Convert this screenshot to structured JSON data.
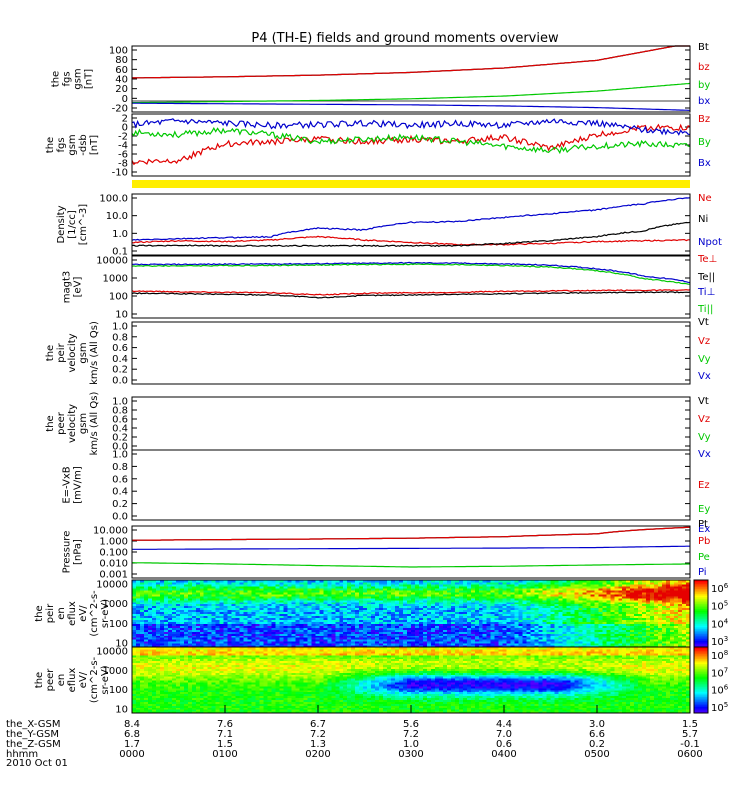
{
  "title": "P4 (TH-E) fields and ground moments overview",
  "date_label": "2010 Oct 01",
  "ephemeris": {
    "rows": [
      {
        "label": "the_X-GSM",
        "values": [
          "8.4",
          "7.6",
          "6.7",
          "5.6",
          "4.4",
          "3.0",
          "1.5"
        ]
      },
      {
        "label": "the_Y-GSM",
        "values": [
          "6.8",
          "7.1",
          "7.2",
          "7.2",
          "7.0",
          "6.6",
          "5.7"
        ]
      },
      {
        "label": "the_Z-GSM",
        "values": [
          "1.7",
          "1.5",
          "1.3",
          "1.0",
          "0.6",
          "0.2",
          "-0.1"
        ]
      },
      {
        "label": "hhmm",
        "values": [
          "0000",
          "0100",
          "0200",
          "0300",
          "0400",
          "0500",
          "0600"
        ]
      }
    ]
  },
  "chart_data": [
    {
      "type": "line",
      "ylabel": [
        "the",
        "fgs",
        "gsm",
        "[nT]"
      ],
      "yticks": [
        "100",
        "80",
        "60",
        "40",
        "20",
        "0",
        "-20"
      ],
      "ylim": [
        -20,
        100
      ],
      "x_hours": [
        0,
        1,
        2,
        3,
        4,
        5,
        6
      ],
      "series": [
        {
          "name": "Bt",
          "color": "#000000",
          "values": [
            42,
            44,
            47,
            52,
            60,
            74,
            105
          ]
        },
        {
          "name": "bz",
          "color": "#e00000",
          "values": [
            42,
            44,
            47,
            52,
            60,
            74,
            105
          ]
        },
        {
          "name": "by",
          "color": "#00c800",
          "values": [
            -3,
            -1,
            1,
            4,
            9,
            18,
            32
          ]
        },
        {
          "name": "bx",
          "color": "#0000cc",
          "values": [
            -4,
            -5,
            -6,
            -7,
            -9,
            -12,
            -17
          ]
        }
      ]
    },
    {
      "type": "line",
      "ylabel": [
        "the",
        "fgs",
        "gsm",
        "-dsb",
        "[nT]"
      ],
      "yticks": [
        "2",
        "0",
        "-2",
        "-4",
        "-6",
        "-8",
        "-10"
      ],
      "ylim": [
        -11,
        2.5
      ],
      "x_hours": [
        0,
        0.5,
        1,
        1.5,
        2,
        2.5,
        3,
        3.5,
        4,
        4.5,
        5,
        5.5,
        6
      ],
      "series": [
        {
          "name": "Bz",
          "color": "#e00000",
          "values": [
            -8,
            -7.5,
            -4,
            -3.5,
            -3,
            -3.5,
            -3,
            -3.5,
            -2.5,
            -5,
            -2,
            -0.5,
            -0.5
          ]
        },
        {
          "name": "By",
          "color": "#00c800",
          "values": [
            -1.5,
            -2,
            -1,
            -2,
            -3.5,
            -3,
            -2.5,
            -3.5,
            -4.5,
            -5.5,
            -4.5,
            -4,
            -4.5
          ]
        },
        {
          "name": "Bx",
          "color": "#0000cc",
          "values": [
            0.2,
            1,
            0.5,
            0,
            0.2,
            0.5,
            0,
            0.5,
            0,
            1,
            0.5,
            -1,
            -1.5
          ]
        }
      ]
    },
    {
      "type": "line",
      "ylabel": [
        "Density",
        "[1/cc]",
        "[cm^-3]"
      ],
      "yticks": [
        "100.0",
        "10.0",
        "1.0",
        "0.1"
      ],
      "log_scale": true,
      "ylim": [
        0.1,
        150
      ],
      "x_hours": [
        0,
        0.5,
        1,
        1.5,
        2,
        2.5,
        3,
        3.5,
        4,
        4.5,
        5,
        5.5,
        6
      ],
      "series": [
        {
          "name": "Ne",
          "color": "#e00000",
          "values": [
            0.45,
            0.55,
            0.5,
            0.6,
            0.9,
            0.6,
            0.45,
            0.35,
            0.35,
            0.4,
            0.5,
            0.55,
            0.6
          ]
        },
        {
          "name": "Ni",
          "color": "#000000",
          "values": [
            0.3,
            0.32,
            0.3,
            0.3,
            0.3,
            0.3,
            0.3,
            0.3,
            0.4,
            0.55,
            0.9,
            1.8,
            5
          ]
        },
        {
          "name": "Npot",
          "color": "#0000cc",
          "values": [
            0.6,
            0.7,
            0.8,
            0.9,
            2.5,
            2,
            5,
            5.5,
            9,
            14,
            22,
            45,
            100
          ]
        }
      ]
    },
    {
      "type": "line",
      "ylabel": [
        "magt3",
        "[eV]"
      ],
      "yticks": [
        "10000",
        "1000",
        "100",
        "10"
      ],
      "log_scale": true,
      "ylim": [
        10,
        12000
      ],
      "x_hours": [
        0,
        0.5,
        1,
        1.5,
        2,
        2.5,
        3,
        3.5,
        4,
        4.5,
        5,
        5.5,
        6
      ],
      "series": [
        {
          "name": "Te⊥",
          "color": "#e00000",
          "values": [
            220,
            200,
            190,
            180,
            140,
            170,
            180,
            190,
            210,
            220,
            230,
            240,
            240
          ]
        },
        {
          "name": "Te||",
          "color": "#000000",
          "values": [
            170,
            160,
            150,
            140,
            100,
            130,
            140,
            150,
            160,
            170,
            180,
            190,
            190
          ]
        },
        {
          "name": "Ti⊥",
          "color": "#0000cc",
          "values": [
            4500,
            4600,
            4700,
            4800,
            5000,
            5200,
            5500,
            5300,
            4800,
            4200,
            2800,
            1200,
            600
          ]
        },
        {
          "name": "Ti||",
          "color": "#00c800",
          "values": [
            3800,
            3900,
            4000,
            4100,
            4300,
            4500,
            4700,
            4500,
            4000,
            3400,
            2200,
            900,
            450
          ]
        }
      ]
    },
    {
      "type": "line",
      "ylabel": [
        "the",
        "peir",
        "velocity",
        "gsm",
        "km/s (All Qs)"
      ],
      "yticks": [
        "1.0",
        "0.8",
        "0.6",
        "0.4",
        "0.2",
        "0.0"
      ],
      "ylim": [
        0,
        1
      ],
      "series": [
        {
          "name": "Vt",
          "color": "#000000",
          "values": []
        },
        {
          "name": "Vz",
          "color": "#e00000",
          "values": []
        },
        {
          "name": "Vy",
          "color": "#00c800",
          "values": []
        },
        {
          "name": "Vx",
          "color": "#0000cc",
          "values": []
        }
      ]
    },
    {
      "type": "line",
      "ylabel": [
        "the",
        "peer",
        "velocity",
        "gsm",
        "km/s (All Qs)"
      ],
      "yticks": [
        "1.0",
        "0.8",
        "0.6",
        "0.4",
        "0.2",
        "0.0"
      ],
      "ylim": [
        0,
        1
      ],
      "series": [
        {
          "name": "Vt",
          "color": "#000000",
          "values": []
        },
        {
          "name": "Vz",
          "color": "#e00000",
          "values": []
        },
        {
          "name": "Vy",
          "color": "#00c800",
          "values": []
        },
        {
          "name": "Vx",
          "color": "#0000cc",
          "values": []
        }
      ]
    },
    {
      "type": "line",
      "ylabel": [
        "E=-VxB",
        "[mV/m]"
      ],
      "yticks": [
        "1.0",
        "0.8",
        "0.6",
        "0.4",
        "0.2",
        "0.0"
      ],
      "ylim": [
        0,
        1
      ],
      "series": [
        {
          "name": "Ez",
          "color": "#e00000",
          "values": []
        },
        {
          "name": "Ey",
          "color": "#00c800",
          "values": []
        },
        {
          "name": "Ex",
          "color": "#0000cc",
          "values": []
        }
      ]
    },
    {
      "type": "line",
      "ylabel": [
        "Pressure",
        "[nPa]"
      ],
      "yticks": [
        "10.000",
        "1.000",
        "0.100",
        "0.010",
        "0.001"
      ],
      "log_scale": true,
      "ylim": [
        0.001,
        10
      ],
      "x_hours": [
        0,
        1,
        2,
        3,
        4,
        5,
        6
      ],
      "series": [
        {
          "name": "Pt",
          "color": "#000000",
          "values": [
            0.8,
            0.9,
            1.0,
            1.15,
            1.5,
            2.5,
            8
          ]
        },
        {
          "name": "Pb",
          "color": "#e00000",
          "values": [
            0.8,
            0.9,
            1.0,
            1.15,
            1.5,
            2.5,
            8
          ]
        },
        {
          "name": "Pe",
          "color": "#00c800",
          "values": [
            0.015,
            0.012,
            0.009,
            0.007,
            0.008,
            0.01,
            0.012
          ]
        },
        {
          "name": "Pi",
          "color": "#0000cc",
          "values": [
            0.16,
            0.17,
            0.18,
            0.19,
            0.2,
            0.22,
            0.28
          ]
        }
      ]
    },
    {
      "type": "heatmap",
      "ylabel": [
        "the",
        "peir",
        "en",
        "eflux",
        "eV/",
        "(cm^2-s-",
        "sr-eV)"
      ],
      "yticks": [
        "10000",
        "1000",
        "100",
        "10"
      ],
      "colorbar_ticks": [
        "10^6",
        "10^5",
        "10^4",
        "10^3"
      ]
    },
    {
      "type": "heatmap",
      "ylabel": [
        "the",
        "peer",
        "en",
        "eflux",
        "eV/",
        "(cm^2-s-",
        "sr-eV)"
      ],
      "yticks": [
        "10000",
        "1000",
        "100",
        "10"
      ],
      "colorbar_ticks": [
        "10^8",
        "10^7",
        "10^6",
        "10^5"
      ]
    }
  ]
}
